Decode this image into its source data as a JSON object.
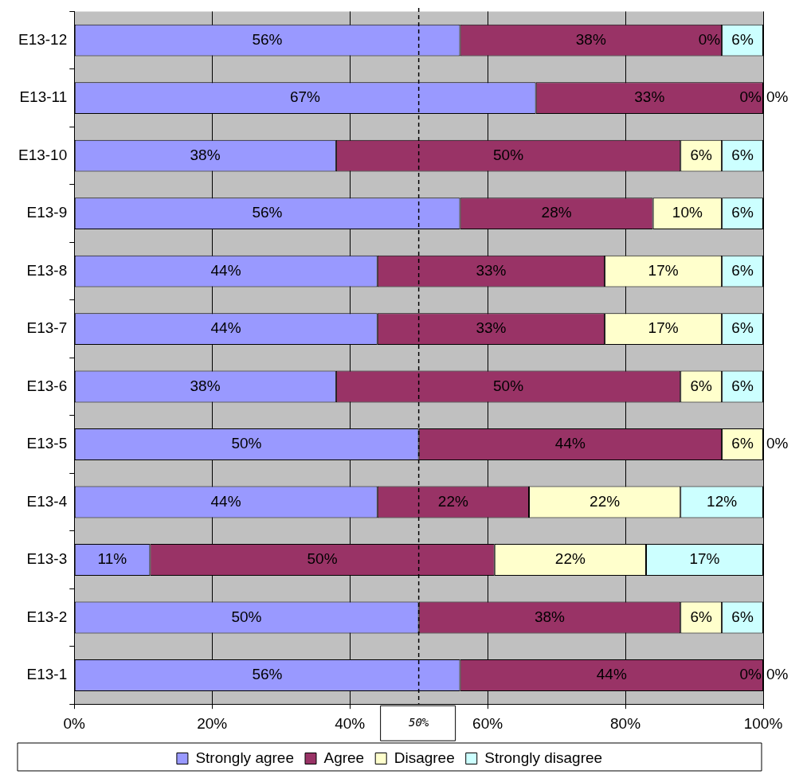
{
  "chart_data": {
    "type": "bar",
    "orientation": "horizontal",
    "stacked": true,
    "grid": "x",
    "legend": "bottom",
    "categories": [
      "E13-12",
      "E13-11",
      "E13-10",
      "E13-9",
      "E13-8",
      "E13-7",
      "E13-6",
      "E13-5",
      "E13-4",
      "E13-3",
      "E13-2",
      "E13-1"
    ],
    "series": [
      {
        "name": "Strongly agree",
        "color": "#9999ff",
        "values": [
          56,
          67,
          38,
          56,
          44,
          44,
          38,
          50,
          44,
          11,
          50,
          56
        ],
        "value_labels": [
          "56%",
          "67%",
          "38%",
          "56%",
          "44%",
          "44%",
          "38%",
          "50%",
          "44%",
          "11%",
          "50%",
          "56%"
        ]
      },
      {
        "name": "Agree",
        "color": "#993366",
        "values": [
          38,
          33,
          50,
          28,
          33,
          33,
          50,
          44,
          22,
          50,
          38,
          44
        ],
        "value_labels": [
          "38%",
          "33%",
          "50%",
          "28%",
          "33%",
          "33%",
          "50%",
          "44%",
          "22%",
          "50%",
          "38%",
          "44%"
        ]
      },
      {
        "name": "Disagree",
        "color": "#ffffcc",
        "values": [
          0,
          0,
          6,
          10,
          17,
          17,
          6,
          6,
          22,
          22,
          6,
          0
        ],
        "value_labels": [
          "0%",
          "0%",
          "6%",
          "10%",
          "17%",
          "17%",
          "6%",
          "6%",
          "22%",
          "22%",
          "6%",
          "0%"
        ]
      },
      {
        "name": "Strongly disagree",
        "color": "#ccffff",
        "values": [
          6,
          0,
          6,
          6,
          6,
          6,
          6,
          0,
          12,
          17,
          6,
          0
        ],
        "value_labels": [
          "6%",
          "0%",
          "6%",
          "6%",
          "6%",
          "6%",
          "6%",
          "0%",
          "12%",
          "17%",
          "6%",
          "0%"
        ]
      }
    ],
    "xlim": [
      0,
      100
    ],
    "xticks": [
      {
        "value": 0,
        "label": "0%"
      },
      {
        "value": 20,
        "label": "20%"
      },
      {
        "value": 40,
        "label": "40%"
      },
      {
        "value": 60,
        "label": "60%"
      },
      {
        "value": 80,
        "label": "80%"
      },
      {
        "value": 100,
        "label": "100%"
      }
    ],
    "ref_lines": [
      {
        "axis": "x",
        "value": 50,
        "label": "50%",
        "line_style": "dashed",
        "color": "#000000"
      }
    ]
  }
}
